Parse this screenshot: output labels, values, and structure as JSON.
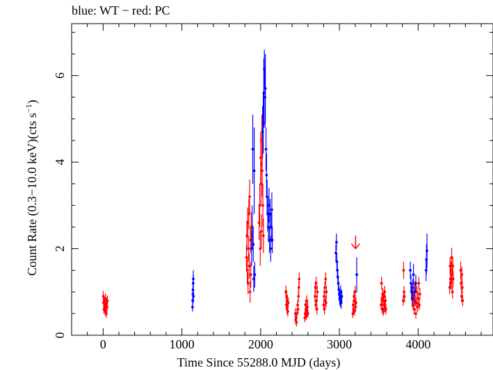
{
  "chart_data": {
    "type": "scatter",
    "title": "blue: WT − red: PC",
    "xlabel": "Time Since 55288.0 MJD (days)",
    "ylabel_main": "Count Rate (0.3−10.0 keV)(cts s",
    "ylabel_sup": "−1",
    "ylabel_close": ")",
    "xlim": [
      -400,
      4950
    ],
    "ylim": [
      0,
      7.2
    ],
    "xticks": [
      0,
      1000,
      2000,
      3000,
      4000
    ],
    "xtick_labels": [
      "0",
      "1000",
      "2000",
      "3000",
      "4000"
    ],
    "yticks": [
      0,
      2,
      4,
      6
    ],
    "ytick_labels": [
      "0",
      "2",
      "4",
      "6"
    ],
    "colors": {
      "WT": "#0000ff",
      "PC": "#ff0000"
    },
    "series": [
      {
        "mode": "WT",
        "points": [
          [
            1135,
            0.65,
            0.1
          ],
          [
            1137,
            0.8,
            0.12
          ],
          [
            1139,
            0.95,
            0.15
          ],
          [
            1141,
            1.05,
            0.18
          ],
          [
            1143,
            1.2,
            0.2
          ],
          [
            1145,
            1.3,
            0.2
          ],
          [
            1147,
            0.9,
            0.15
          ],
          [
            1885,
            2.0,
            0.4
          ],
          [
            1893,
            2.5,
            0.5
          ],
          [
            1900,
            4.3,
            0.8
          ],
          [
            1906,
            2.1,
            0.4
          ],
          [
            1912,
            1.3,
            0.3
          ],
          [
            1918,
            3.8,
            1.0
          ],
          [
            1925,
            1.4,
            0.3
          ],
          [
            2025,
            4.7,
            0.6
          ],
          [
            2033,
            4.9,
            0.7
          ],
          [
            2040,
            5.6,
            0.8
          ],
          [
            2047,
            6.15,
            0.45
          ],
          [
            2055,
            5.5,
            0.7
          ],
          [
            2060,
            5.7,
            0.8
          ],
          [
            2068,
            4.3,
            0.5
          ],
          [
            2075,
            3.7,
            0.5
          ],
          [
            2082,
            3.2,
            0.4
          ],
          [
            2090,
            2.8,
            0.4
          ],
          [
            2098,
            2.5,
            0.35
          ],
          [
            2106,
            3.0,
            0.4
          ],
          [
            2112,
            2.2,
            0.3
          ],
          [
            2120,
            2.8,
            0.35
          ],
          [
            2128,
            2.0,
            0.3
          ],
          [
            2135,
            2.5,
            0.35
          ],
          [
            2142,
            2.9,
            0.4
          ],
          [
            2148,
            2.2,
            0.3
          ],
          [
            2955,
            1.9,
            0.2
          ],
          [
            2962,
            2.15,
            0.2
          ],
          [
            2968,
            1.7,
            0.2
          ],
          [
            2974,
            1.5,
            0.2
          ],
          [
            2980,
            1.35,
            0.18
          ],
          [
            2986,
            1.2,
            0.16
          ],
          [
            2992,
            1.05,
            0.15
          ],
          [
            2998,
            0.95,
            0.15
          ],
          [
            3004,
            0.85,
            0.15
          ],
          [
            3010,
            0.8,
            0.14
          ],
          [
            3016,
            1.0,
            0.15
          ],
          [
            3022,
            0.75,
            0.14
          ],
          [
            3030,
            0.9,
            0.15
          ],
          [
            3220,
            1.4,
            0.4
          ],
          [
            3900,
            1.5,
            0.2
          ],
          [
            3908,
            1.2,
            0.2
          ],
          [
            3916,
            1.0,
            0.2
          ],
          [
            3924,
            0.85,
            0.2
          ],
          [
            3932,
            1.1,
            0.2
          ],
          [
            3940,
            1.4,
            0.25
          ],
          [
            3950,
            0.9,
            0.2
          ],
          [
            3960,
            1.0,
            0.2
          ],
          [
            3970,
            1.2,
            0.2
          ],
          [
            4100,
            1.5,
            0.25
          ],
          [
            4105,
            1.75,
            0.35
          ],
          [
            4112,
            1.95,
            0.4
          ]
        ]
      },
      {
        "mode": "PC",
        "points": [
          [
            2,
            0.9,
            0.12
          ],
          [
            6,
            0.75,
            0.1
          ],
          [
            10,
            0.6,
            0.1
          ],
          [
            14,
            0.8,
            0.1
          ],
          [
            18,
            0.65,
            0.1
          ],
          [
            22,
            0.7,
            0.1
          ],
          [
            26,
            0.55,
            0.1
          ],
          [
            30,
            0.85,
            0.12
          ],
          [
            34,
            0.6,
            0.1
          ],
          [
            38,
            0.7,
            0.1
          ],
          [
            42,
            0.5,
            0.1
          ],
          [
            46,
            0.75,
            0.1
          ],
          [
            50,
            0.65,
            0.1
          ],
          [
            54,
            0.8,
            0.12
          ],
          [
            1820,
            1.8,
            0.3
          ],
          [
            1825,
            2.3,
            0.35
          ],
          [
            1830,
            1.5,
            0.3
          ],
          [
            1835,
            2.6,
            0.35
          ],
          [
            1840,
            1.2,
            0.25
          ],
          [
            1845,
            2.0,
            0.3
          ],
          [
            1850,
            2.8,
            0.35
          ],
          [
            1855,
            1.6,
            0.3
          ],
          [
            1860,
            3.2,
            0.4
          ],
          [
            1865,
            1.0,
            0.25
          ],
          [
            1870,
            2.2,
            0.3
          ],
          [
            1875,
            1.4,
            0.3
          ],
          [
            1880,
            2.5,
            0.35
          ],
          [
            1980,
            2.6,
            0.4
          ],
          [
            1988,
            3.0,
            0.5
          ],
          [
            1995,
            2.0,
            0.4
          ],
          [
            2000,
            4.1,
            0.6
          ],
          [
            2005,
            3.5,
            0.5
          ],
          [
            2010,
            2.4,
            0.4
          ],
          [
            2015,
            4.5,
            0.6
          ],
          [
            2020,
            3.8,
            0.6
          ],
          [
            2028,
            3.0,
            0.5
          ],
          [
            2035,
            2.3,
            0.4
          ],
          [
            2320,
            1.0,
            0.15
          ],
          [
            2325,
            0.7,
            0.12
          ],
          [
            2330,
            0.9,
            0.14
          ],
          [
            2335,
            0.6,
            0.12
          ],
          [
            2340,
            0.8,
            0.13
          ],
          [
            2345,
            0.55,
            0.12
          ],
          [
            2350,
            0.75,
            0.12
          ],
          [
            2440,
            0.5,
            0.12
          ],
          [
            2445,
            0.35,
            0.1
          ],
          [
            2450,
            0.4,
            0.1
          ],
          [
            2455,
            0.3,
            0.1
          ],
          [
            2460,
            0.5,
            0.12
          ],
          [
            2470,
            0.7,
            0.12
          ],
          [
            2475,
            0.6,
            0.12
          ],
          [
            2480,
            0.9,
            0.14
          ],
          [
            2485,
            1.1,
            0.15
          ],
          [
            2490,
            1.3,
            0.15
          ],
          [
            2560,
            0.4,
            0.1
          ],
          [
            2565,
            0.5,
            0.1
          ],
          [
            2570,
            0.7,
            0.12
          ],
          [
            2575,
            0.6,
            0.12
          ],
          [
            2580,
            0.45,
            0.1
          ],
          [
            2585,
            0.8,
            0.12
          ],
          [
            2590,
            0.55,
            0.1
          ],
          [
            2595,
            0.65,
            0.12
          ],
          [
            2600,
            0.5,
            0.1
          ],
          [
            2690,
            0.9,
            0.14
          ],
          [
            2695,
            1.1,
            0.15
          ],
          [
            2700,
            0.7,
            0.12
          ],
          [
            2705,
            1.2,
            0.15
          ],
          [
            2710,
            0.8,
            0.12
          ],
          [
            2715,
            0.6,
            0.12
          ],
          [
            2720,
            1.0,
            0.14
          ],
          [
            2800,
            0.7,
            0.12
          ],
          [
            2805,
            0.9,
            0.14
          ],
          [
            2810,
            0.6,
            0.12
          ],
          [
            2815,
            1.1,
            0.15
          ],
          [
            2820,
            0.8,
            0.12
          ],
          [
            2825,
            1.3,
            0.15
          ],
          [
            2830,
            0.75,
            0.12
          ],
          [
            2835,
            1.0,
            0.14
          ],
          [
            3170,
            0.5,
            0.1
          ],
          [
            3175,
            0.7,
            0.12
          ],
          [
            3180,
            0.6,
            0.12
          ],
          [
            3185,
            0.9,
            0.14
          ],
          [
            3190,
            0.55,
            0.1
          ],
          [
            3195,
            0.8,
            0.12
          ],
          [
            3200,
            1.0,
            0.14
          ],
          [
            3205,
            0.65,
            0.12
          ],
          [
            3210,
            0.75,
            0.12
          ],
          [
            3530,
            0.7,
            0.12
          ],
          [
            3535,
            1.2,
            0.15
          ],
          [
            3540,
            0.85,
            0.13
          ],
          [
            3545,
            0.6,
            0.12
          ],
          [
            3550,
            0.95,
            0.14
          ],
          [
            3555,
            0.8,
            0.12
          ],
          [
            3560,
            0.55,
            0.1
          ],
          [
            3565,
            0.9,
            0.14
          ],
          [
            3570,
            0.7,
            0.12
          ],
          [
            3575,
            1.0,
            0.14
          ],
          [
            3580,
            0.65,
            0.12
          ],
          [
            3585,
            0.8,
            0.12
          ],
          [
            3590,
            0.6,
            0.12
          ],
          [
            3810,
            0.8,
            0.12
          ],
          [
            3815,
            1.5,
            0.2
          ],
          [
            3820,
            1.0,
            0.14
          ],
          [
            3825,
            0.9,
            0.14
          ],
          [
            3935,
            0.7,
            0.12
          ],
          [
            3942,
            0.9,
            0.14
          ],
          [
            3948,
            0.6,
            0.12
          ],
          [
            3955,
            1.1,
            0.15
          ],
          [
            3962,
            0.8,
            0.13
          ],
          [
            3970,
            0.5,
            0.12
          ],
          [
            3978,
            0.75,
            0.12
          ],
          [
            3985,
            1.0,
            0.14
          ],
          [
            3992,
            0.65,
            0.12
          ],
          [
            4000,
            0.85,
            0.13
          ],
          [
            4008,
            1.2,
            0.15
          ],
          [
            4015,
            0.7,
            0.12
          ],
          [
            4022,
            0.95,
            0.14
          ],
          [
            4400,
            1.1,
            0.15
          ],
          [
            4405,
            1.6,
            0.2
          ],
          [
            4410,
            1.3,
            0.18
          ],
          [
            4415,
            1.5,
            0.2
          ],
          [
            4420,
            1.2,
            0.16
          ],
          [
            4425,
            1.8,
            0.22
          ],
          [
            4430,
            1.4,
            0.18
          ],
          [
            4435,
            1.0,
            0.15
          ],
          [
            4440,
            1.6,
            0.2
          ],
          [
            4445,
            1.3,
            0.18
          ],
          [
            4540,
            1.5,
            0.2
          ],
          [
            4545,
            1.2,
            0.16
          ],
          [
            4550,
            0.9,
            0.14
          ],
          [
            4555,
            1.4,
            0.18
          ],
          [
            4560,
            1.1,
            0.15
          ],
          [
            4565,
            0.8,
            0.13
          ]
        ]
      }
    ],
    "upper_limits": [
      {
        "mode": "PC",
        "x": 3205,
        "y": 2.3,
        "y_to": 2.0
      }
    ]
  }
}
